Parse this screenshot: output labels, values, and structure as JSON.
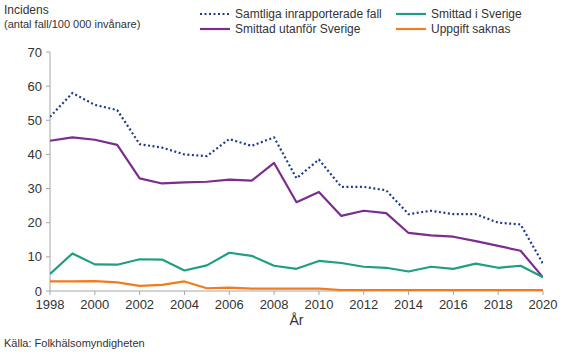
{
  "chart_data": {
    "type": "line",
    "y_label": "Incidens",
    "y_unit": "(antal fall/100 000 invånare)",
    "x_label": "År",
    "source": "Källa: Folkhälsomyndigheten",
    "x": [
      1998,
      1999,
      2000,
      2001,
      2002,
      2003,
      2004,
      2005,
      2006,
      2007,
      2008,
      2009,
      2010,
      2011,
      2012,
      2013,
      2014,
      2015,
      2016,
      2017,
      2018,
      2019,
      2020
    ],
    "xlim": [
      1998,
      2020
    ],
    "xticks": [
      1998,
      2000,
      2002,
      2004,
      2006,
      2008,
      2010,
      2012,
      2014,
      2016,
      2018,
      2020
    ],
    "ylim": [
      0,
      70
    ],
    "yticks": [
      0,
      10,
      20,
      30,
      40,
      50,
      60,
      70
    ],
    "grid": false,
    "legend": "top",
    "series": [
      {
        "name": "Samtliga inrapporterade fall",
        "color": "#1f3c88",
        "line_style": "dotted",
        "values": [
          51,
          58,
          54.5,
          53,
          43,
          42,
          40,
          39.5,
          44.5,
          42.5,
          45,
          33,
          38.5,
          30.5,
          30.5,
          29.5,
          22.5,
          23.5,
          22.5,
          22.5,
          20,
          19.5,
          8
        ]
      },
      {
        "name": "Smittad utanför Sverige",
        "color": "#7b2d8e",
        "line_style": "solid",
        "values": [
          44,
          45,
          44.3,
          42.8,
          33,
          31.5,
          31.8,
          32,
          32.6,
          32.3,
          37.5,
          26,
          29,
          22,
          23.5,
          22.8,
          17,
          16.3,
          15.9,
          14.6,
          13.2,
          11.8,
          4
        ]
      },
      {
        "name": "Smittad i Sverige",
        "color": "#1f9e83",
        "line_style": "solid",
        "values": [
          5,
          11,
          7.8,
          7.7,
          9.3,
          9.2,
          6,
          7.5,
          11.2,
          10.3,
          7.4,
          6.5,
          8.8,
          8.2,
          7.1,
          6.8,
          5.7,
          7.1,
          6.5,
          8,
          6.8,
          7.4,
          4
        ]
      },
      {
        "name": "Uppgift saknas",
        "color": "#f07c1e",
        "line_style": "solid",
        "values": [
          2.8,
          2.8,
          2.9,
          2.5,
          1.5,
          1.8,
          2.8,
          0.8,
          1,
          0.7,
          0.7,
          0.7,
          0.7,
          0.3,
          0.3,
          0.3,
          0.3,
          0.3,
          0.3,
          0.3,
          0.3,
          0.3,
          0.3
        ]
      }
    ]
  }
}
